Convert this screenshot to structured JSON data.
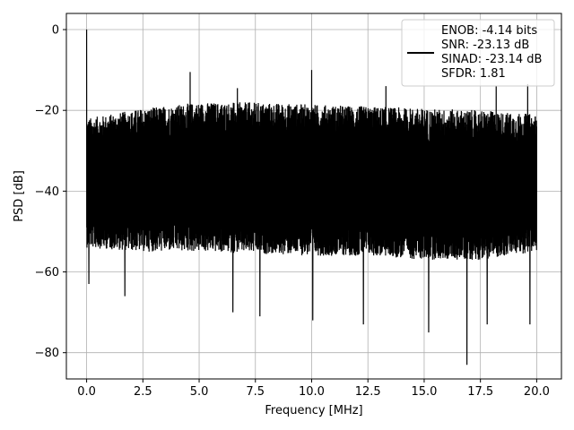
{
  "chart_data": {
    "type": "line",
    "title": "",
    "xlabel": "Frequency [MHz]",
    "ylabel": "PSD [dB]",
    "xlim": [
      -0.9,
      21.1
    ],
    "ylim": [
      -86.5,
      4.0
    ],
    "x_ticks": [
      0.0,
      2.5,
      5.0,
      7.5,
      10.0,
      12.5,
      15.0,
      17.5,
      20.0
    ],
    "x_tick_labels": [
      "0.0",
      "2.5",
      "5.0",
      "7.5",
      "10.0",
      "12.5",
      "15.0",
      "17.5",
      "20.0"
    ],
    "y_ticks": [
      0,
      -20,
      -40,
      -60,
      -80
    ],
    "y_tick_labels": [
      "0",
      "−20",
      "−40",
      "−60",
      "−80"
    ],
    "grid": true,
    "legend_position": "top-right",
    "line_color": "#000000",
    "legend_lines": [
      "ENOB: -4.14 bits",
      "SNR: -23.13 dB",
      "SINAD: -23.14 dB",
      "SFDR: 1.81"
    ],
    "series": [
      {
        "x_start": 0.0,
        "x_end": 20.0,
        "noise_envelope": {
          "x": [
            0.0,
            2.5,
            5.0,
            7.5,
            10.0,
            12.5,
            15.0,
            17.5,
            20.0
          ],
          "upper": [
            -22,
            -19.5,
            -18,
            -18,
            -18.5,
            -19,
            -19.5,
            -20,
            -21
          ],
          "lower": [
            -54,
            -55,
            -55,
            -55.5,
            -56,
            -56,
            -57,
            -57,
            -55
          ]
        },
        "peaks": [
          {
            "x": 0.0,
            "y": 0.0
          },
          {
            "x": 4.6,
            "y": -10.5
          },
          {
            "x": 10.0,
            "y": -10.0
          },
          {
            "x": 13.3,
            "y": -14.0
          },
          {
            "x": 18.2,
            "y": -14.0
          },
          {
            "x": 19.6,
            "y": -13.5
          },
          {
            "x": 6.7,
            "y": -14.5
          }
        ],
        "dips": [
          {
            "x": 0.1,
            "y": -63
          },
          {
            "x": 1.7,
            "y": -66
          },
          {
            "x": 6.5,
            "y": -70
          },
          {
            "x": 7.7,
            "y": -71
          },
          {
            "x": 10.05,
            "y": -72
          },
          {
            "x": 12.3,
            "y": -73
          },
          {
            "x": 15.2,
            "y": -75
          },
          {
            "x": 16.9,
            "y": -83
          },
          {
            "x": 17.8,
            "y": -73
          },
          {
            "x": 19.7,
            "y": -73
          }
        ]
      }
    ]
  }
}
